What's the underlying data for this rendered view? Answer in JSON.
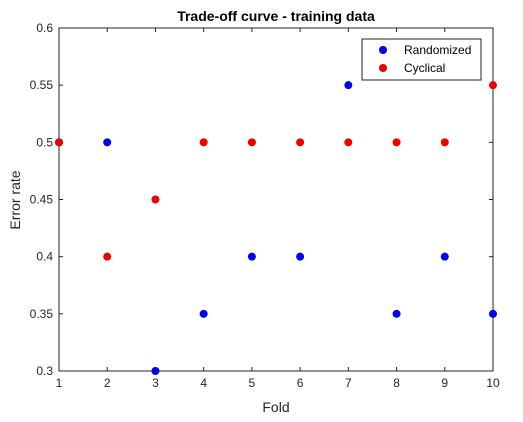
{
  "chart_data": {
    "type": "scatter",
    "title": "Trade-off curve - training data",
    "xlabel": "Fold",
    "ylabel": "Error rate",
    "xlim": [
      1,
      10
    ],
    "ylim": [
      0.3,
      0.6
    ],
    "x_ticks": [
      "1",
      "2",
      "3",
      "4",
      "5",
      "6",
      "7",
      "8",
      "9",
      "10"
    ],
    "y_ticks": [
      "0.3",
      "0.35",
      "0.4",
      "0.45",
      "0.5",
      "0.55",
      "0.6"
    ],
    "grid": false,
    "legend_position": "top-right",
    "series": [
      {
        "name": "Randomized",
        "color": "#0000ee",
        "x": [
          1,
          2,
          3,
          4,
          5,
          6,
          7,
          8,
          9,
          10
        ],
        "y": [
          0.5,
          0.5,
          0.3,
          0.35,
          0.4,
          0.4,
          0.55,
          0.35,
          0.4,
          0.35
        ]
      },
      {
        "name": "Cyclical",
        "color": "#ee0000",
        "x": [
          1,
          2,
          3,
          4,
          5,
          6,
          7,
          8,
          9,
          10
        ],
        "y": [
          0.5,
          0.4,
          0.45,
          0.5,
          0.5,
          0.5,
          0.5,
          0.5,
          0.5,
          0.55
        ]
      }
    ]
  }
}
